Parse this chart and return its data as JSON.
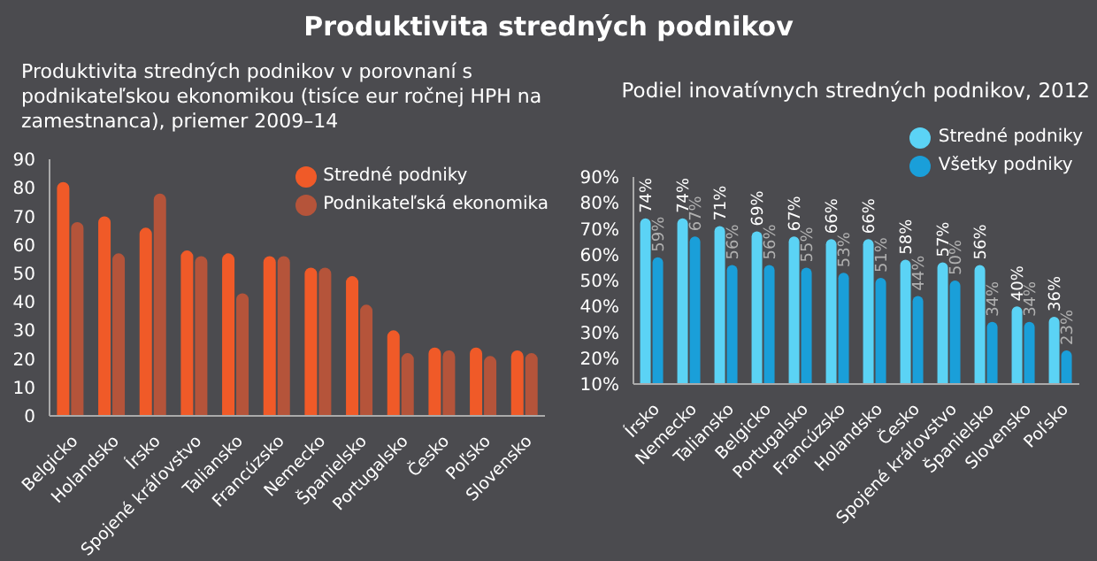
{
  "chart_data": [
    {
      "type": "bar",
      "title": "Produktivita stredných podnikov",
      "subtitle": "Produktivita stredných podnikov v porovnaní s podnikateľskou ekonomikou (tisíce eur ročnej HPH na zamestnanca), priemer 2009–14",
      "categories": [
        "Belgicko",
        "Holandsko",
        "Írsko",
        "Spojené kráľovstvo",
        "Taliansko",
        "Francúzsko",
        "Nemecko",
        "Španielsko",
        "Portugalsko",
        "Česko",
        "Poľsko",
        "Slovensko"
      ],
      "series": [
        {
          "name": "Stredné podniky",
          "color": "#f05a28",
          "values": [
            82,
            70,
            66,
            58,
            57,
            56,
            52,
            49,
            30,
            24,
            24,
            23
          ]
        },
        {
          "name": "Podnikateľská ekonomika",
          "color": "#b5543a",
          "values": [
            68,
            57,
            78,
            56,
            43,
            56,
            52,
            39,
            22,
            23,
            21,
            22
          ]
        }
      ],
      "ylim": [
        0,
        90
      ],
      "yticks": [
        0,
        10,
        20,
        30,
        40,
        50,
        60,
        70,
        80,
        90
      ],
      "grid": false,
      "legend": "top right"
    },
    {
      "type": "bar",
      "title": "Podiel inovatívnych stredných podnikov, 2012",
      "categories": [
        "Írsko",
        "Nemecko",
        "Taliansko",
        "Belgicko",
        "Portugalsko",
        "Francúzsko",
        "Holandsko",
        "Česko",
        "Spojené kráľovstvo",
        "Španielsko",
        "Slovensko",
        "Poľsko"
      ],
      "series": [
        {
          "name": "Stredné podniky",
          "color": "#5bd3f5",
          "values": [
            74,
            74,
            71,
            69,
            67,
            66,
            66,
            58,
            57,
            56,
            40,
            36
          ],
          "value_labels": [
            "74%",
            "74%",
            "71%",
            "69%",
            "67%",
            "66%",
            "66%",
            "58%",
            "57%",
            "56%",
            "40%",
            "36%"
          ]
        },
        {
          "name": "Všetky podniky",
          "color": "#1a9fd9",
          "values": [
            59,
            67,
            56,
            56,
            55,
            53,
            51,
            44,
            50,
            34,
            34,
            23
          ],
          "value_labels": [
            "59%",
            "67%",
            "56%",
            "56%",
            "55%",
            "53%",
            "51%",
            "44%",
            "50%",
            "34%",
            "34%",
            "23%"
          ]
        }
      ],
      "ylim": [
        10,
        90
      ],
      "yticks": [
        {
          "value": 10,
          "label": "10%"
        },
        {
          "value": 20,
          "label": "20%"
        },
        {
          "value": 30,
          "label": "30%"
        },
        {
          "value": 40,
          "label": "40%"
        },
        {
          "value": 50,
          "label": "50%"
        },
        {
          "value": 60,
          "label": "60%"
        },
        {
          "value": 70,
          "label": "70%"
        },
        {
          "value": 80,
          "label": "80%"
        },
        {
          "value": 90,
          "label": "90%"
        }
      ],
      "grid": false,
      "legend": "top right"
    }
  ]
}
